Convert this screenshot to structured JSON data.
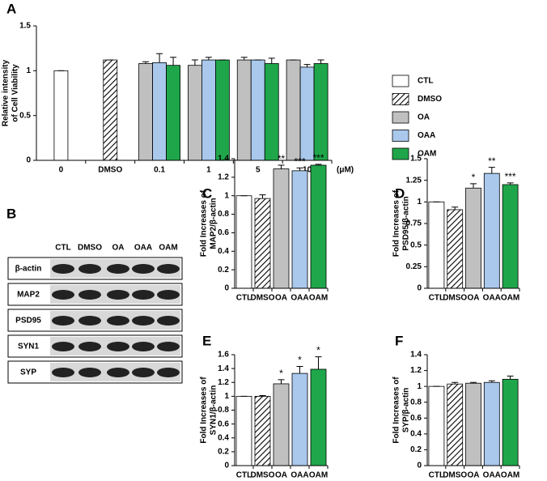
{
  "chart_data": [
    {
      "type": "bar",
      "panel_label": "A",
      "y_label": [
        "Relative intensity",
        "of Cell Viability"
      ],
      "categories": [
        "0",
        "DMSO",
        "0.1",
        "1",
        "5",
        "10"
      ],
      "x_unit": "(μM)",
      "ylim": [
        0,
        1.5
      ],
      "yticks": [
        0,
        0.5,
        1,
        1.5
      ],
      "legend": "right",
      "series": [
        {
          "name": "CTL",
          "color": "#ffffff",
          "values": [
            1,
            null,
            null,
            null,
            null,
            null
          ],
          "errors": [
            0,
            null,
            null,
            null,
            null,
            null
          ]
        },
        {
          "name": "DMSO",
          "color": "hatch",
          "values": [
            null,
            1.12,
            null,
            null,
            null,
            null
          ],
          "errors": [
            null,
            0,
            null,
            null,
            null,
            null
          ]
        },
        {
          "name": "OA",
          "color": "#c0c0c0",
          "values": [
            null,
            null,
            1.08,
            1.06,
            1.12,
            1.12
          ],
          "errors": [
            null,
            null,
            0.02,
            0.06,
            0.03,
            0
          ]
        },
        {
          "name": "OAA",
          "color": "#a9c8ec",
          "values": [
            null,
            null,
            1.09,
            1.12,
            1.12,
            1.04
          ],
          "errors": [
            null,
            null,
            0.1,
            0.03,
            0,
            0.03
          ]
        },
        {
          "name": "OAM",
          "color": "#1fa64a",
          "values": [
            null,
            null,
            1.06,
            1.12,
            1.08,
            1.08
          ],
          "errors": [
            null,
            null,
            0.09,
            0,
            0.06,
            0.04
          ]
        }
      ]
    },
    {
      "type": "bar",
      "panel_label": "C",
      "y_label": [
        "Fold Increases of",
        "MAP2/β-actin"
      ],
      "categories": [
        "CTL",
        "DMSO",
        "OA",
        "OAA",
        "OAM"
      ],
      "colors": [
        "#ffffff",
        "hatch",
        "#c0c0c0",
        "#a9c8ec",
        "#1fa64a"
      ],
      "values": [
        1,
        0.97,
        1.29,
        1.27,
        1.33
      ],
      "errors": [
        0,
        0.04,
        0.04,
        0.03,
        0.01
      ],
      "annotations": [
        null,
        null,
        "**",
        "***",
        "***"
      ],
      "ylim": [
        0,
        1.4
      ],
      "yticks": [
        0,
        0.2,
        0.4,
        0.6,
        0.8,
        1,
        1.2,
        1.4
      ]
    },
    {
      "type": "bar",
      "panel_label": "D",
      "y_label": [
        "Fold Increases of",
        "PSD95/β-actin"
      ],
      "categories": [
        "CTL",
        "DMSO",
        "OA",
        "OAA",
        "OAM"
      ],
      "colors": [
        "#ffffff",
        "hatch",
        "#c0c0c0",
        "#a9c8ec",
        "#1fa64a"
      ],
      "values": [
        1,
        0.91,
        1.16,
        1.33,
        1.2
      ],
      "errors": [
        0,
        0.03,
        0.05,
        0.07,
        0.02
      ],
      "annotations": [
        null,
        null,
        "*",
        "**",
        "***"
      ],
      "ylim": [
        0,
        1.5
      ],
      "yticks": [
        0,
        0.25,
        0.5,
        0.75,
        1,
        1.25,
        1.5
      ]
    },
    {
      "type": "bar",
      "panel_label": "E",
      "y_label": [
        "Fold Increases of",
        "SYN1/β-actin"
      ],
      "categories": [
        "CTL",
        "DMSO",
        "OA",
        "OAA",
        "OAM"
      ],
      "colors": [
        "#ffffff",
        "hatch",
        "#c0c0c0",
        "#a9c8ec",
        "#1fa64a"
      ],
      "values": [
        1,
        1,
        1.18,
        1.33,
        1.39
      ],
      "errors": [
        0,
        0.01,
        0.06,
        0.1,
        0.18
      ],
      "annotations": [
        null,
        null,
        "*",
        "*",
        "*"
      ],
      "ylim": [
        0,
        1.6
      ],
      "yticks": [
        0,
        0.2,
        0.4,
        0.6,
        0.8,
        1,
        1.2,
        1.4,
        1.6
      ]
    },
    {
      "type": "bar",
      "panel_label": "F",
      "y_label": [
        "Fold Increases of",
        "SYP/β-actin"
      ],
      "categories": [
        "CTL",
        "DMSO",
        "OA",
        "OAA",
        "OAM"
      ],
      "colors": [
        "#ffffff",
        "hatch",
        "#c0c0c0",
        "#a9c8ec",
        "#1fa64a"
      ],
      "values": [
        1,
        1.03,
        1.04,
        1.05,
        1.09
      ],
      "errors": [
        0,
        0.02,
        0.01,
        0.02,
        0.04
      ],
      "ylim": [
        0,
        1.4
      ],
      "yticks": [
        0,
        0.2,
        0.4,
        0.6,
        0.8,
        1,
        1.2,
        1.4
      ]
    }
  ],
  "blot": {
    "panel_label": "B",
    "lanes": [
      "CTL",
      "DMSO",
      "OA",
      "OAA",
      "OAM"
    ],
    "rows": [
      "β-actin",
      "MAP2",
      "PSD95",
      "SYN1",
      "SYP"
    ]
  }
}
